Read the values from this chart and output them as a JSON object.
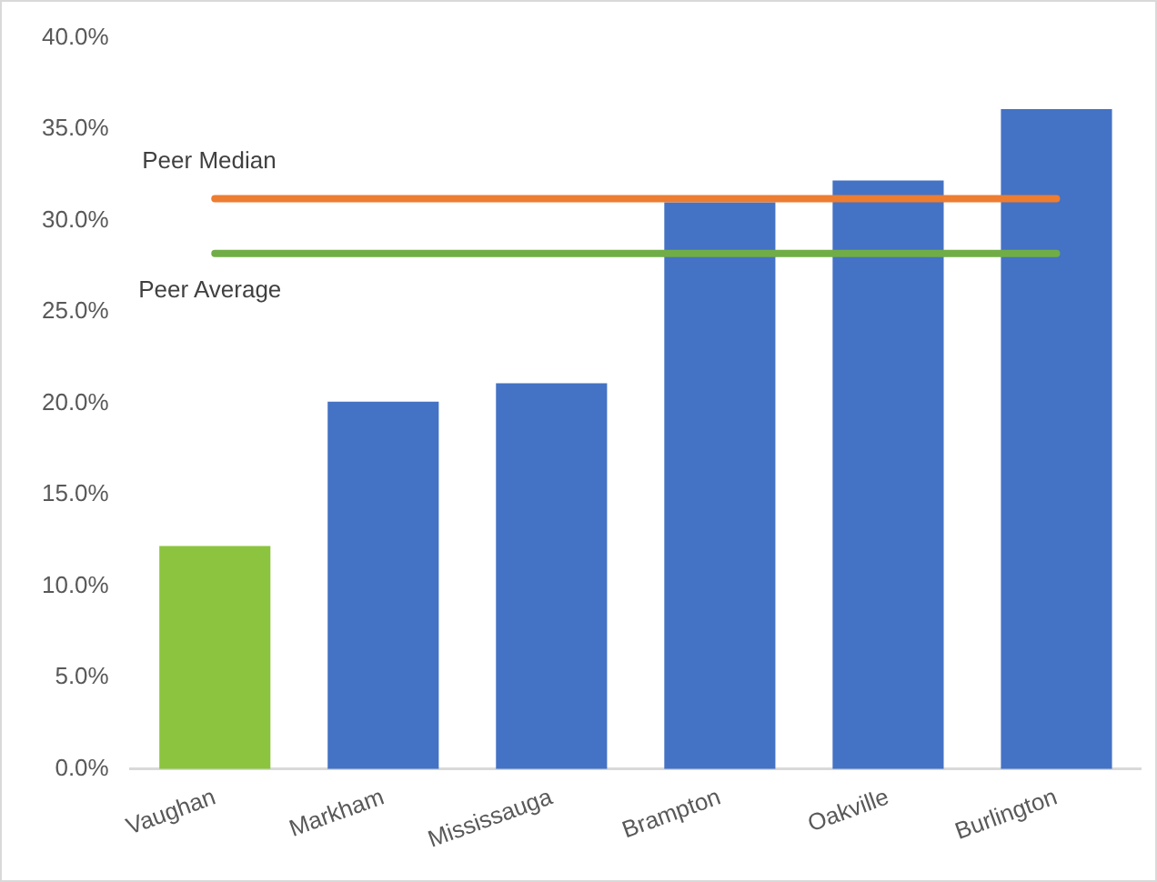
{
  "chart_data": {
    "type": "bar",
    "categories": [
      "Vaughan",
      "Markham",
      "Mississauga",
      "Brampton",
      "Oakville",
      "Burlington"
    ],
    "values": [
      12.2,
      20.1,
      21.1,
      31.0,
      32.2,
      36.1
    ],
    "colors": [
      "#8cc43f",
      "#4472c4",
      "#4472c4",
      "#4472c4",
      "#4472c4",
      "#4472c4"
    ],
    "ylim": [
      0,
      40
    ],
    "yticks": [
      {
        "value": 0,
        "label": "0.0%"
      },
      {
        "value": 5,
        "label": "5.0%"
      },
      {
        "value": 10,
        "label": "10.0%"
      },
      {
        "value": 15,
        "label": "15.0%"
      },
      {
        "value": 20,
        "label": "20.0%"
      },
      {
        "value": 25,
        "label": "25.0%"
      },
      {
        "value": 30,
        "label": "30.0%"
      },
      {
        "value": 35,
        "label": "35.0%"
      },
      {
        "value": 40,
        "label": "40.0%"
      }
    ],
    "ref_lines": [
      {
        "axis": "y",
        "value": 31.2,
        "label": "Peer Median",
        "color": "#ed7d31"
      },
      {
        "axis": "y",
        "value": 28.2,
        "label": "Peer Average",
        "color": "#70ad47"
      }
    ],
    "grid": false,
    "legend": false
  }
}
